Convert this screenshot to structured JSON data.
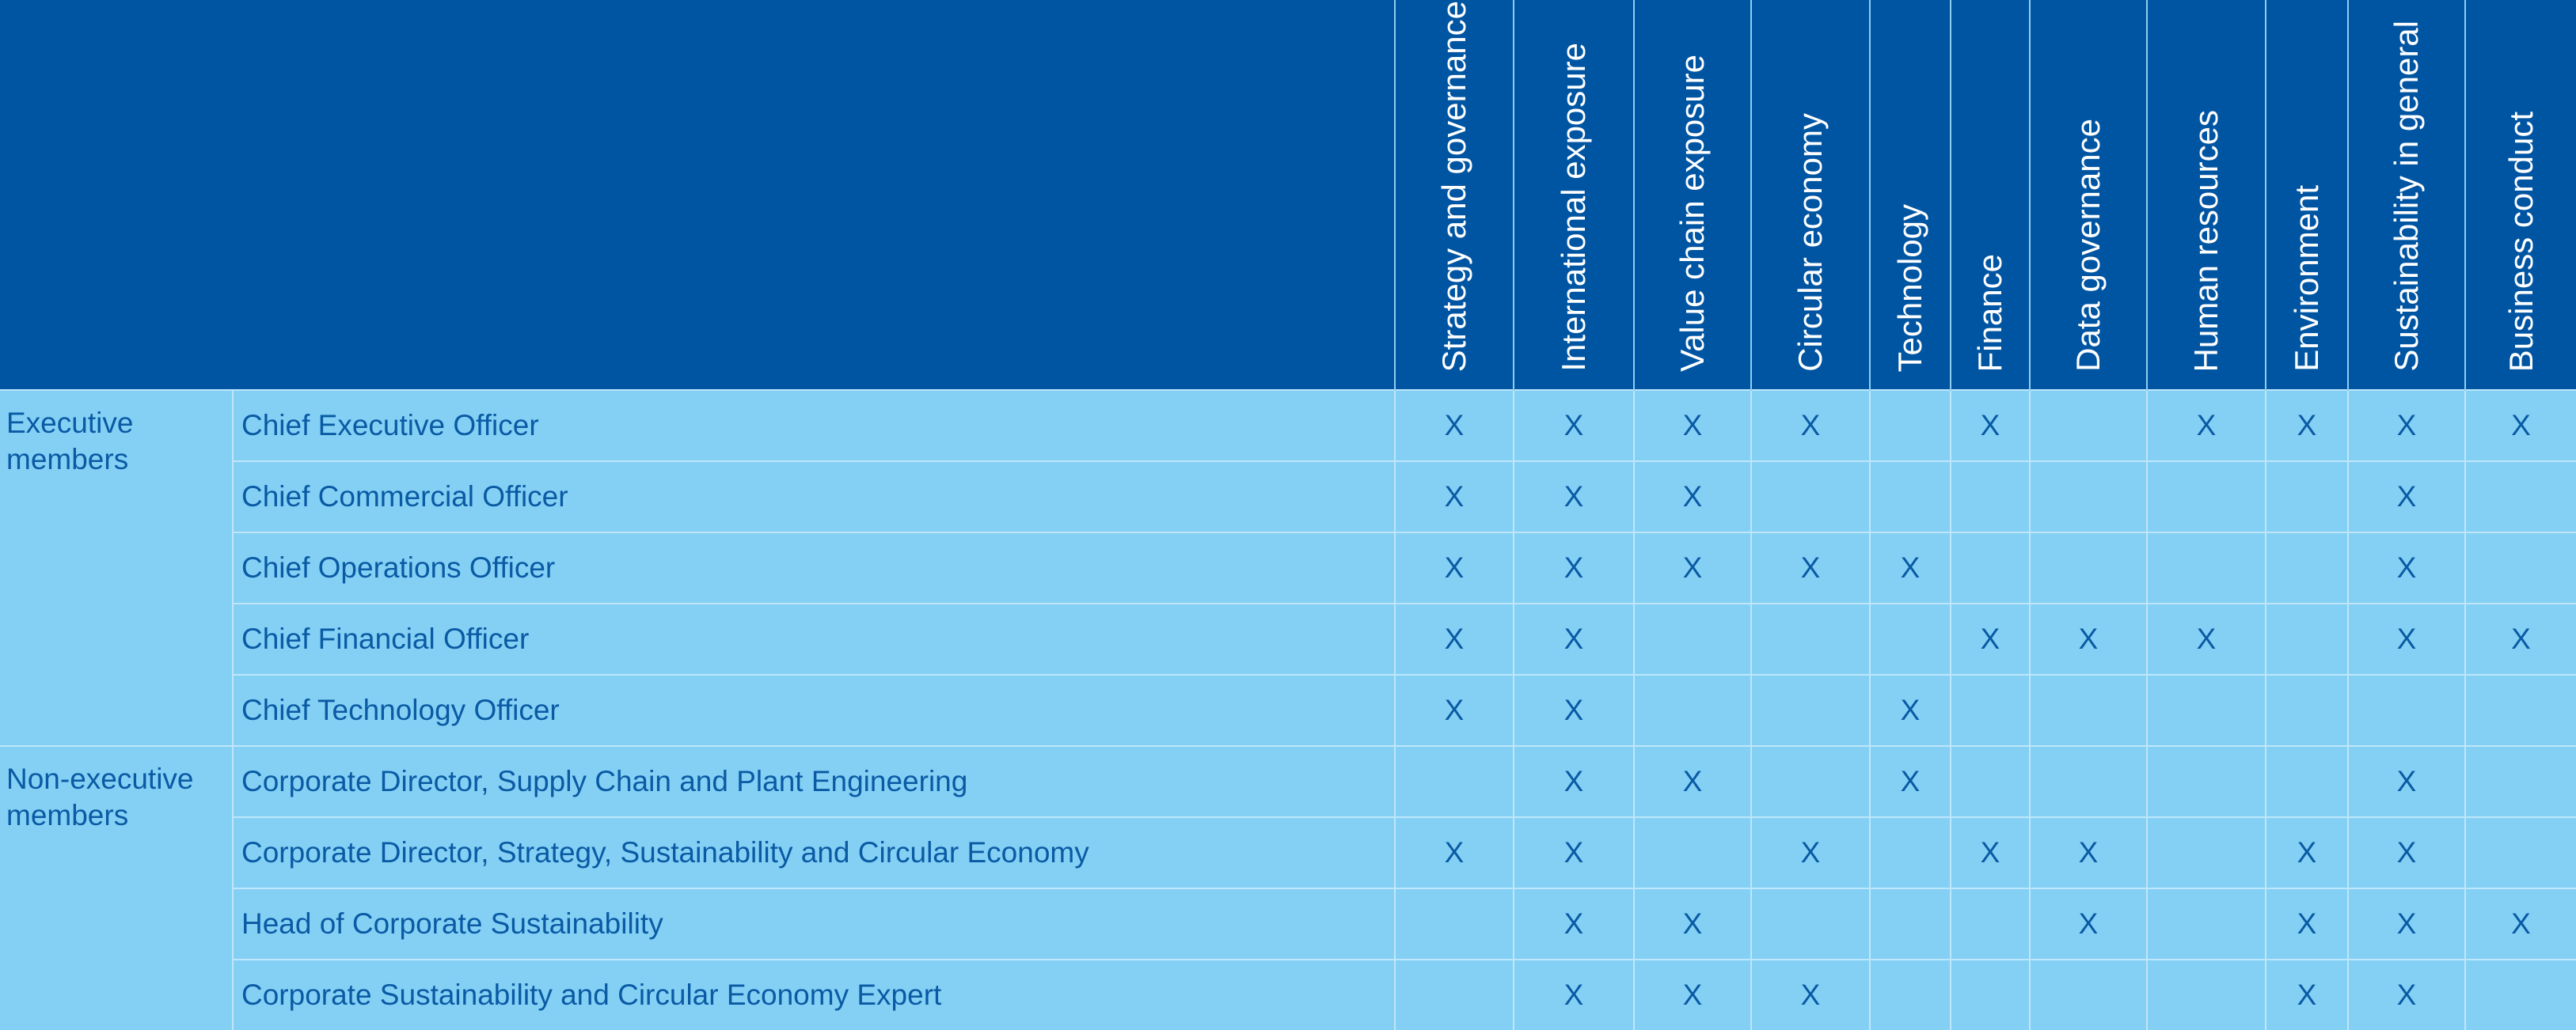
{
  "columns": [
    "Strategy and governance",
    "International exposure",
    "Value chain exposure",
    "Circular economy",
    "Technology",
    "Finance",
    "Data governance",
    "Human resources",
    "Environment",
    "Sustainability in general",
    "Business conduct"
  ],
  "groups": [
    {
      "label": "Executive members",
      "rows": [
        {
          "role": "Chief Executive Officer",
          "marks": [
            "X",
            "X",
            "X",
            "X",
            "",
            "X",
            "",
            "X",
            "X",
            "X",
            "X"
          ]
        },
        {
          "role": "Chief Commercial Officer",
          "marks": [
            "X",
            "X",
            "X",
            "",
            "",
            "",
            "",
            "",
            "",
            "X",
            ""
          ]
        },
        {
          "role": "Chief Operations Officer",
          "marks": [
            "X",
            "X",
            "X",
            "X",
            "X",
            "",
            "",
            "",
            "",
            "X",
            ""
          ]
        },
        {
          "role": "Chief Financial Officer",
          "marks": [
            "X",
            "X",
            "",
            "",
            "",
            "X",
            "X",
            "X",
            "",
            "X",
            "X"
          ]
        },
        {
          "role": "Chief Technology Officer",
          "marks": [
            "X",
            "X",
            "",
            "",
            "X",
            "",
            "",
            "",
            "",
            "",
            ""
          ]
        }
      ]
    },
    {
      "label": "Non-executive members",
      "rows": [
        {
          "role": "Corporate Director, Supply Chain and Plant Engineering",
          "marks": [
            "",
            "X",
            "X",
            "",
            "X",
            "",
            "",
            "",
            "",
            "X",
            ""
          ]
        },
        {
          "role": "Corporate Director, Strategy, Sustainability and Circular Economy",
          "marks": [
            "X",
            "X",
            "",
            "X",
            "",
            "X",
            "X",
            "",
            "X",
            "X",
            ""
          ]
        },
        {
          "role": "Head of Corporate Sustainability",
          "marks": [
            "",
            "X",
            "X",
            "",
            "",
            "",
            "X",
            "",
            "X",
            "X",
            "X"
          ]
        },
        {
          "role": "Corporate Sustainability and Circular Economy Expert",
          "marks": [
            "",
            "X",
            "X",
            "X",
            "",
            "",
            "",
            "",
            "X",
            "X",
            ""
          ]
        }
      ]
    }
  ]
}
